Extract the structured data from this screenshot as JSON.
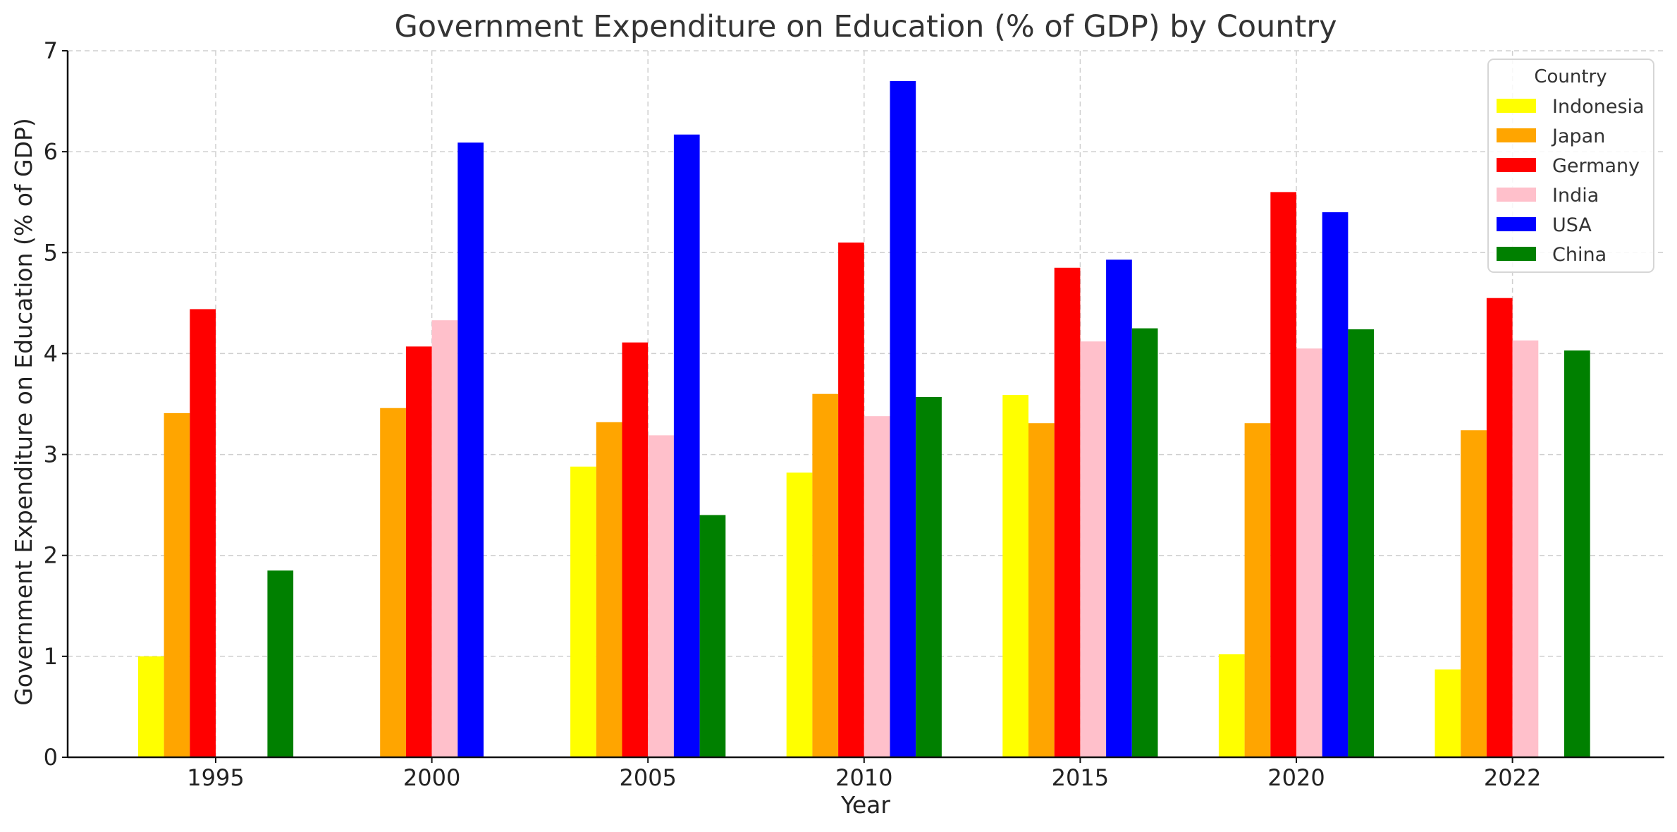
{
  "chart_data": {
    "type": "bar",
    "title": "Government Expenditure on Education (% of GDP) by Country",
    "xlabel": "Year",
    "ylabel": "Government Expenditure on Education (% of GDP)",
    "categories": [
      "1995",
      "2000",
      "2005",
      "2010",
      "2015",
      "2020",
      "2022"
    ],
    "ylim": [
      0,
      7
    ],
    "yticks": [
      0,
      1,
      2,
      3,
      4,
      5,
      6,
      7
    ],
    "grid": true,
    "legend_title": "Country",
    "legend_position": "top-right",
    "series": [
      {
        "name": "Indonesia",
        "color": "#ffff00",
        "values": [
          1.0,
          null,
          2.88,
          2.82,
          3.59,
          1.02,
          0.87
        ]
      },
      {
        "name": "Japan",
        "color": "#ffa500",
        "values": [
          3.41,
          3.46,
          3.32,
          3.6,
          3.31,
          3.31,
          3.24
        ]
      },
      {
        "name": "Germany",
        "color": "#ff0000",
        "values": [
          4.44,
          4.07,
          4.11,
          5.1,
          4.85,
          5.6,
          4.55
        ]
      },
      {
        "name": "India",
        "color": "#ffc0cb",
        "values": [
          null,
          4.33,
          3.19,
          3.38,
          4.12,
          4.05,
          4.13
        ]
      },
      {
        "name": "USA",
        "color": "#0000ff",
        "values": [
          null,
          6.09,
          6.17,
          6.7,
          4.93,
          5.4,
          null
        ]
      },
      {
        "name": "China",
        "color": "#008000",
        "values": [
          1.85,
          null,
          2.4,
          3.57,
          4.25,
          4.24,
          4.03
        ]
      }
    ]
  }
}
